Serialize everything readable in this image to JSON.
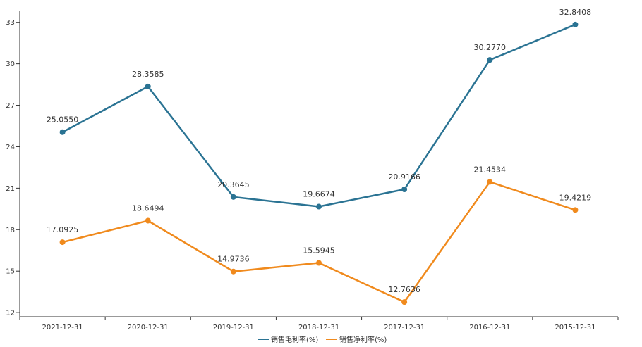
{
  "chart_data": {
    "type": "line",
    "categories": [
      "2021-12-31",
      "2020-12-31",
      "2019-12-31",
      "2018-12-31",
      "2017-12-31",
      "2016-12-31",
      "2015-12-31"
    ],
    "series": [
      {
        "name": "销售毛利率(%)",
        "values": [
          25.055,
          28.3585,
          20.3645,
          19.6674,
          20.9166,
          30.277,
          32.8408
        ],
        "labels": [
          "25.0550",
          "28.3585",
          "20.3645",
          "19.6674",
          "20.9166",
          "30.2770",
          "32.8408"
        ],
        "color": "#2a7393"
      },
      {
        "name": "销售净利率(%)",
        "values": [
          17.0925,
          18.6494,
          14.9736,
          15.5945,
          12.7636,
          21.4534,
          19.4219
        ],
        "labels": [
          "17.0925",
          "18.6494",
          "14.9736",
          "15.5945",
          "12.7636",
          "21.4534",
          "19.4219"
        ],
        "color": "#f08a1d"
      }
    ],
    "y_ticks": [
      12,
      15,
      18,
      21,
      24,
      27,
      30,
      33
    ],
    "ylim": [
      11.7,
      33.8
    ],
    "grid": false,
    "legend_position": "bottom-center"
  }
}
